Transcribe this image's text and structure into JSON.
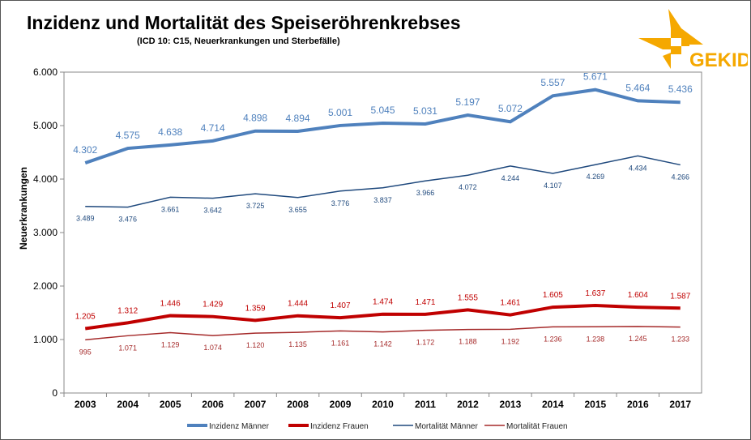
{
  "logo": {
    "text": "GEKID",
    "color": "#F5A800"
  },
  "chart_data": {
    "type": "line",
    "title": "Inzidenz und Mortalität des Speiseröhrenkrebses",
    "subtitle": "(ICD 10: C15, Neuerkrankungen und Sterbefälle)",
    "ylabel": "Neuerkrankungen",
    "xlabel": "",
    "ylim": [
      0,
      6000
    ],
    "yticks": [
      "0",
      "1.000",
      "2.000",
      "3.000",
      "4.000",
      "5.000",
      "6.000"
    ],
    "categories": [
      "2003",
      "2004",
      "2005",
      "2006",
      "2007",
      "2008",
      "2009",
      "2010",
      "2011",
      "2012",
      "2013",
      "2014",
      "2015",
      "2016",
      "2017"
    ],
    "grid": false,
    "legend": "bottom",
    "series": [
      {
        "name": "Inzidenz Männer",
        "color": "#4F81BD",
        "values": [
          4302,
          4575,
          4638,
          4714,
          4898,
          4894,
          5001,
          5045,
          5031,
          5197,
          5072,
          5557,
          5671,
          5464,
          5436
        ],
        "labels": [
          "4.302",
          "4.575",
          "4.638",
          "4.714",
          "4.898",
          "4.894",
          "5.001",
          "5.045",
          "5.031",
          "5.197",
          "5.072",
          "5.557",
          "5.671",
          "5.464",
          "5.436"
        ]
      },
      {
        "name": "Inzidenz Frauen",
        "color": "#C00000",
        "values": [
          1205,
          1312,
          1446,
          1429,
          1359,
          1444,
          1407,
          1474,
          1471,
          1555,
          1461,
          1605,
          1637,
          1604,
          1587
        ],
        "labels": [
          "1.205",
          "1.312",
          "1.446",
          "1.429",
          "1.359",
          "1.444",
          "1.407",
          "1.474",
          "1.471",
          "1.555",
          "1.461",
          "1.605",
          "1.637",
          "1.604",
          "1.587"
        ]
      },
      {
        "name": "Mortalität Männer",
        "color": "#1F497D",
        "values": [
          3489,
          3476,
          3661,
          3642,
          3725,
          3655,
          3776,
          3837,
          3966,
          4072,
          4244,
          4107,
          4269,
          4434,
          4266
        ],
        "labels": [
          "3.489",
          "3.476",
          "3.661",
          "3.642",
          "3.725",
          "3.655",
          "3.776",
          "3.837",
          "3.966",
          "4.072",
          "4.244",
          "4.107",
          "4.269",
          "4.434",
          "4.266"
        ]
      },
      {
        "name": "Mortalität Frauen",
        "color": "#A52A2A",
        "values": [
          995,
          1071,
          1129,
          1074,
          1120,
          1135,
          1161,
          1142,
          1172,
          1188,
          1192,
          1236,
          1238,
          1245,
          1233
        ],
        "labels": [
          "995",
          "1.071",
          "1.129",
          "1.074",
          "1.120",
          "1.135",
          "1.161",
          "1.142",
          "1.172",
          "1.188",
          "1.192",
          "1.236",
          "1.238",
          "1.245",
          "1.233"
        ]
      }
    ]
  }
}
